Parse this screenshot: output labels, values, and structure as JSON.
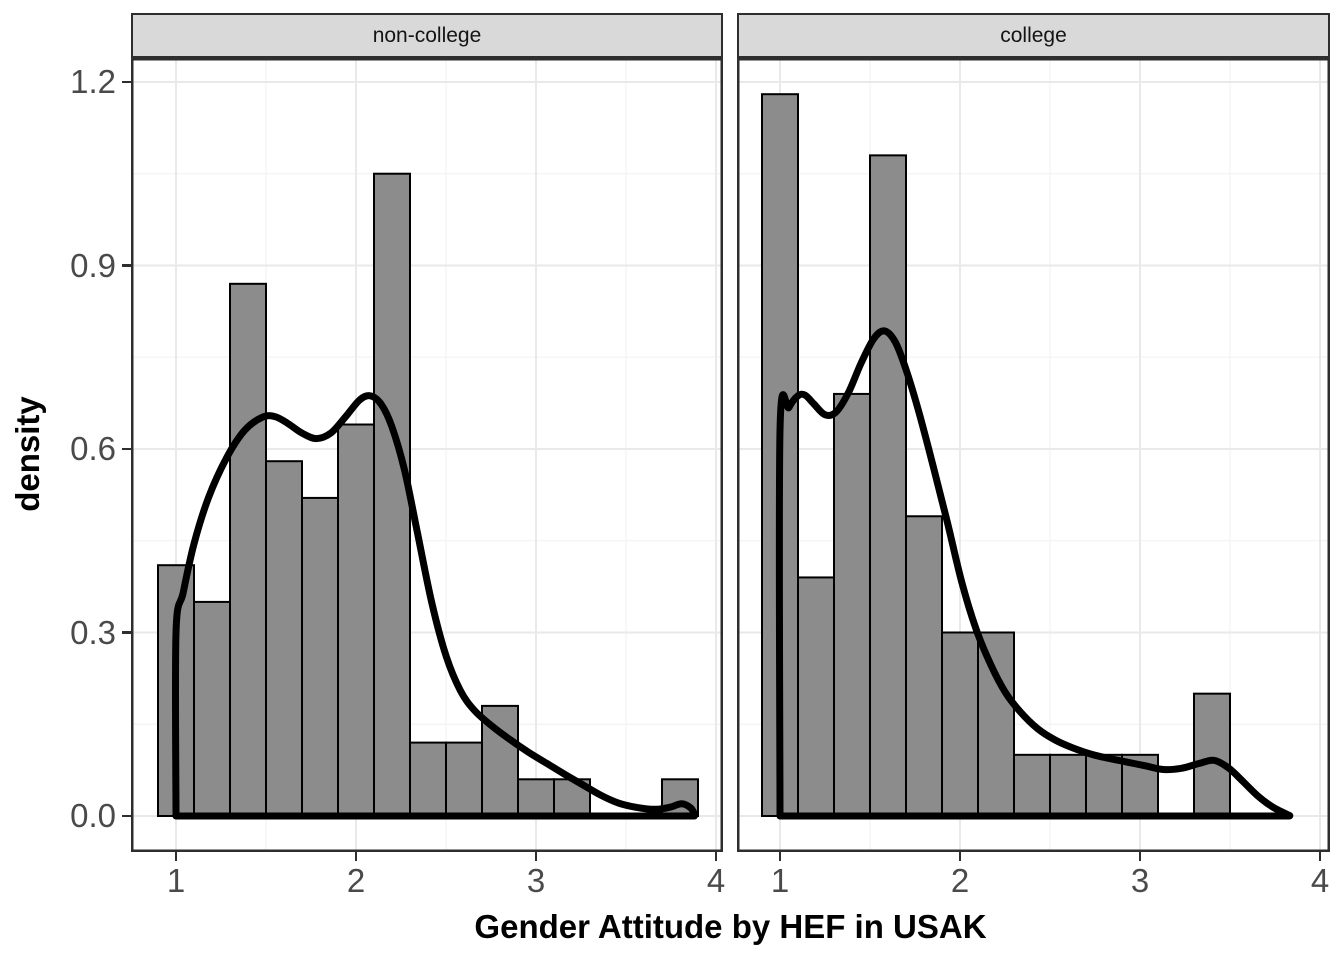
{
  "figure": {
    "x_axis_title": "Gender Attitude by HEF in USAK",
    "y_axis_title": "density",
    "y_tick_labels": [
      "1.2",
      "0.9",
      "0.6",
      "0.3",
      "0.0"
    ],
    "x_tick_labels": [
      "1",
      "2",
      "3",
      "4"
    ]
  },
  "chart_data": {
    "type": "histogram_with_density",
    "title": "",
    "xlabel": "Gender Attitude by HEF in USAK",
    "ylabel": "density",
    "facet_labels": [
      "non-college",
      "college"
    ],
    "x_ticks": [
      1,
      2,
      3,
      4
    ],
    "y_ticks": [
      0.0,
      0.3,
      0.6,
      0.9,
      1.2
    ],
    "x_minor_ticks": [
      1.5,
      2.5,
      3.5
    ],
    "y_minor_ticks": [
      0.15,
      0.45,
      0.75,
      1.05
    ],
    "xlim": [
      0.75,
      4.04
    ],
    "ylim": [
      -0.055,
      1.245
    ],
    "bin_width": 0.2,
    "grid": true,
    "legend": false,
    "colors": {
      "bar_fill": "#8C8C8C",
      "bar_stroke": "#000000",
      "density_line": "#000000",
      "strip_fill": "#D9D9D9",
      "panel_border": "#2E2E2E",
      "grid_major": "#E9E9E9",
      "grid_minor": "#F4F4F4",
      "axis_text": "#4A4A4A",
      "title_text": "#000000"
    },
    "facets": [
      {
        "label": "non-college",
        "bins": [
          {
            "center": 1.0,
            "density": 0.41
          },
          {
            "center": 1.2,
            "density": 0.35
          },
          {
            "center": 1.4,
            "density": 0.87
          },
          {
            "center": 1.6,
            "density": 0.58
          },
          {
            "center": 1.8,
            "density": 0.52
          },
          {
            "center": 2.0,
            "density": 0.64
          },
          {
            "center": 2.2,
            "density": 1.05
          },
          {
            "center": 2.4,
            "density": 0.12
          },
          {
            "center": 2.6,
            "density": 0.12
          },
          {
            "center": 2.8,
            "density": 0.18
          },
          {
            "center": 3.0,
            "density": 0.06
          },
          {
            "center": 3.2,
            "density": 0.06
          },
          {
            "center": 3.4,
            "density": 0.0
          },
          {
            "center": 3.6,
            "density": 0.0
          },
          {
            "center": 3.8,
            "density": 0.06
          }
        ],
        "density_curve": [
          [
            1.0,
            0.0
          ],
          [
            1.0,
            0.3
          ],
          [
            1.04,
            0.365
          ],
          [
            1.1,
            0.445
          ],
          [
            1.18,
            0.52
          ],
          [
            1.28,
            0.585
          ],
          [
            1.38,
            0.63
          ],
          [
            1.48,
            0.652
          ],
          [
            1.55,
            0.653
          ],
          [
            1.62,
            0.642
          ],
          [
            1.7,
            0.626
          ],
          [
            1.78,
            0.617
          ],
          [
            1.86,
            0.626
          ],
          [
            1.94,
            0.652
          ],
          [
            2.02,
            0.68
          ],
          [
            2.08,
            0.687
          ],
          [
            2.14,
            0.673
          ],
          [
            2.2,
            0.636
          ],
          [
            2.27,
            0.565
          ],
          [
            2.34,
            0.465
          ],
          [
            2.42,
            0.35
          ],
          [
            2.5,
            0.262
          ],
          [
            2.58,
            0.205
          ],
          [
            2.66,
            0.172
          ],
          [
            2.76,
            0.146
          ],
          [
            2.86,
            0.124
          ],
          [
            2.96,
            0.104
          ],
          [
            3.06,
            0.086
          ],
          [
            3.16,
            0.068
          ],
          [
            3.26,
            0.051
          ],
          [
            3.36,
            0.034
          ],
          [
            3.46,
            0.021
          ],
          [
            3.56,
            0.014
          ],
          [
            3.66,
            0.011
          ],
          [
            3.74,
            0.014
          ],
          [
            3.81,
            0.02
          ],
          [
            3.86,
            0.013
          ],
          [
            3.88,
            0.003
          ],
          [
            3.88,
            0.0
          ]
        ]
      },
      {
        "label": "college",
        "bins": [
          {
            "center": 1.0,
            "density": 1.18
          },
          {
            "center": 1.2,
            "density": 0.39
          },
          {
            "center": 1.4,
            "density": 0.69
          },
          {
            "center": 1.6,
            "density": 1.08
          },
          {
            "center": 1.8,
            "density": 0.49
          },
          {
            "center": 2.0,
            "density": 0.3
          },
          {
            "center": 2.2,
            "density": 0.3
          },
          {
            "center": 2.4,
            "density": 0.1
          },
          {
            "center": 2.6,
            "density": 0.1
          },
          {
            "center": 2.8,
            "density": 0.1
          },
          {
            "center": 3.0,
            "density": 0.1
          },
          {
            "center": 3.2,
            "density": 0.0
          },
          {
            "center": 3.4,
            "density": 0.2
          },
          {
            "center": 3.6,
            "density": 0.0
          },
          {
            "center": 3.8,
            "density": 0.0
          }
        ],
        "density_curve": [
          [
            1.0,
            0.0
          ],
          [
            1.0,
            0.63
          ],
          [
            1.05,
            0.668
          ],
          [
            1.1,
            0.687
          ],
          [
            1.14,
            0.688
          ],
          [
            1.19,
            0.673
          ],
          [
            1.25,
            0.656
          ],
          [
            1.31,
            0.66
          ],
          [
            1.38,
            0.692
          ],
          [
            1.45,
            0.74
          ],
          [
            1.52,
            0.78
          ],
          [
            1.58,
            0.793
          ],
          [
            1.64,
            0.775
          ],
          [
            1.7,
            0.73
          ],
          [
            1.77,
            0.662
          ],
          [
            1.85,
            0.573
          ],
          [
            1.93,
            0.48
          ],
          [
            2.01,
            0.382
          ],
          [
            2.09,
            0.305
          ],
          [
            2.17,
            0.248
          ],
          [
            2.25,
            0.203
          ],
          [
            2.33,
            0.172
          ],
          [
            2.43,
            0.143
          ],
          [
            2.53,
            0.124
          ],
          [
            2.63,
            0.111
          ],
          [
            2.73,
            0.101
          ],
          [
            2.83,
            0.094
          ],
          [
            2.93,
            0.088
          ],
          [
            3.03,
            0.082
          ],
          [
            3.13,
            0.076
          ],
          [
            3.23,
            0.078
          ],
          [
            3.33,
            0.086
          ],
          [
            3.41,
            0.091
          ],
          [
            3.49,
            0.079
          ],
          [
            3.57,
            0.057
          ],
          [
            3.65,
            0.034
          ],
          [
            3.73,
            0.016
          ],
          [
            3.8,
            0.005
          ],
          [
            3.83,
            0.001
          ],
          [
            3.83,
            0.0
          ]
        ]
      }
    ]
  }
}
